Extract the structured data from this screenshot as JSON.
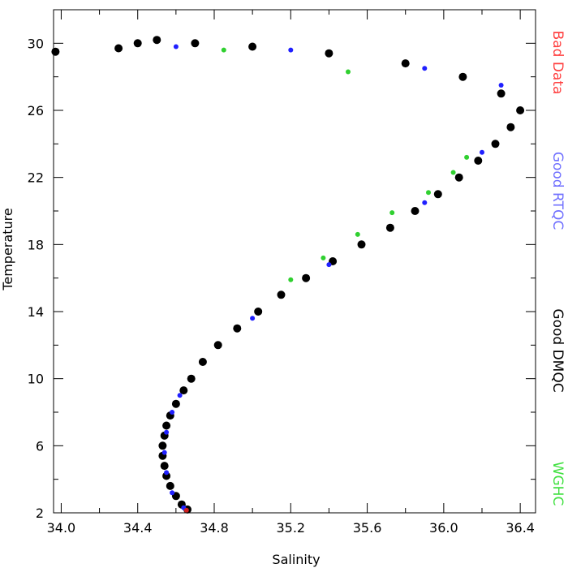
{
  "chart_data": {
    "type": "scatter",
    "title": "",
    "xlabel": "Salinity",
    "ylabel": "Temperature",
    "xlim": [
      33.96,
      36.48
    ],
    "ylim": [
      2,
      32
    ],
    "x_ticks": [
      {
        "value": 34.0,
        "label": "34.0"
      },
      {
        "value": 34.4,
        "label": "34.4"
      },
      {
        "value": 34.8,
        "label": "34.8"
      },
      {
        "value": 35.2,
        "label": "35.2"
      },
      {
        "value": 35.6,
        "label": "35.6"
      },
      {
        "value": 36.0,
        "label": "36.0"
      },
      {
        "value": 36.4,
        "label": "36.4"
      }
    ],
    "y_ticks": [
      {
        "value": 2,
        "label": "2"
      },
      {
        "value": 6,
        "label": "6"
      },
      {
        "value": 10,
        "label": "10"
      },
      {
        "value": 14,
        "label": "14"
      },
      {
        "value": 18,
        "label": "18"
      },
      {
        "value": 22,
        "label": "22"
      },
      {
        "value": 26,
        "label": "26"
      },
      {
        "value": 30,
        "label": "30"
      }
    ],
    "legend": {
      "placement": "right",
      "orientation": "vertical",
      "entries": [
        {
          "label": "Bad Data",
          "color": "#ff4040"
        },
        {
          "label": "Good RTQC",
          "color": "#7070ff"
        },
        {
          "label": "Good DMQC",
          "color": "#000000"
        },
        {
          "label": "WGHC",
          "color": "#40e040"
        }
      ]
    },
    "series": [
      {
        "name": "Good DMQC",
        "color": "#000000",
        "points": [
          [
            34.66,
            2.2
          ],
          [
            34.63,
            2.5
          ],
          [
            34.6,
            3.0
          ],
          [
            34.57,
            3.6
          ],
          [
            34.55,
            4.2
          ],
          [
            34.54,
            4.8
          ],
          [
            34.53,
            5.4
          ],
          [
            34.53,
            6.0
          ],
          [
            34.54,
            6.6
          ],
          [
            34.55,
            7.2
          ],
          [
            34.57,
            7.8
          ],
          [
            34.6,
            8.5
          ],
          [
            34.64,
            9.3
          ],
          [
            34.68,
            10.0
          ],
          [
            34.74,
            11.0
          ],
          [
            34.82,
            12.0
          ],
          [
            34.92,
            13.0
          ],
          [
            35.03,
            14.0
          ],
          [
            35.15,
            15.0
          ],
          [
            35.28,
            16.0
          ],
          [
            35.42,
            17.0
          ],
          [
            35.57,
            18.0
          ],
          [
            35.72,
            19.0
          ],
          [
            35.85,
            20.0
          ],
          [
            35.97,
            21.0
          ],
          [
            36.08,
            22.0
          ],
          [
            36.18,
            23.0
          ],
          [
            36.27,
            24.0
          ],
          [
            36.35,
            25.0
          ],
          [
            36.4,
            26.0
          ],
          [
            36.3,
            27.0
          ],
          [
            36.1,
            28.0
          ],
          [
            35.8,
            28.8
          ],
          [
            35.4,
            29.4
          ],
          [
            35.0,
            29.8
          ],
          [
            34.7,
            30.0
          ],
          [
            34.5,
            30.2
          ],
          [
            34.4,
            30.0
          ],
          [
            34.3,
            29.7
          ],
          [
            33.97,
            29.5
          ]
        ]
      },
      {
        "name": "Good RTQC",
        "color": "#2020ff",
        "points": [
          [
            34.64,
            2.3
          ],
          [
            34.58,
            3.2
          ],
          [
            34.55,
            4.4
          ],
          [
            34.54,
            5.6
          ],
          [
            34.55,
            6.8
          ],
          [
            34.58,
            8.0
          ],
          [
            34.62,
            9.0
          ],
          [
            35.0,
            13.6
          ],
          [
            35.4,
            16.8
          ],
          [
            35.9,
            20.5
          ],
          [
            36.2,
            23.5
          ],
          [
            36.3,
            27.5
          ],
          [
            35.9,
            28.5
          ],
          [
            35.2,
            29.6
          ],
          [
            34.6,
            29.8
          ]
        ]
      },
      {
        "name": "WGHC",
        "color": "#30d030",
        "points": [
          [
            35.2,
            15.9
          ],
          [
            35.37,
            17.2
          ],
          [
            35.55,
            18.6
          ],
          [
            35.73,
            19.9
          ],
          [
            35.92,
            21.1
          ],
          [
            36.05,
            22.3
          ],
          [
            36.12,
            23.2
          ],
          [
            35.5,
            28.3
          ],
          [
            34.85,
            29.6
          ]
        ]
      },
      {
        "name": "Bad Data",
        "color": "#d02020",
        "points": [
          [
            34.655,
            2.15
          ]
        ]
      }
    ]
  }
}
